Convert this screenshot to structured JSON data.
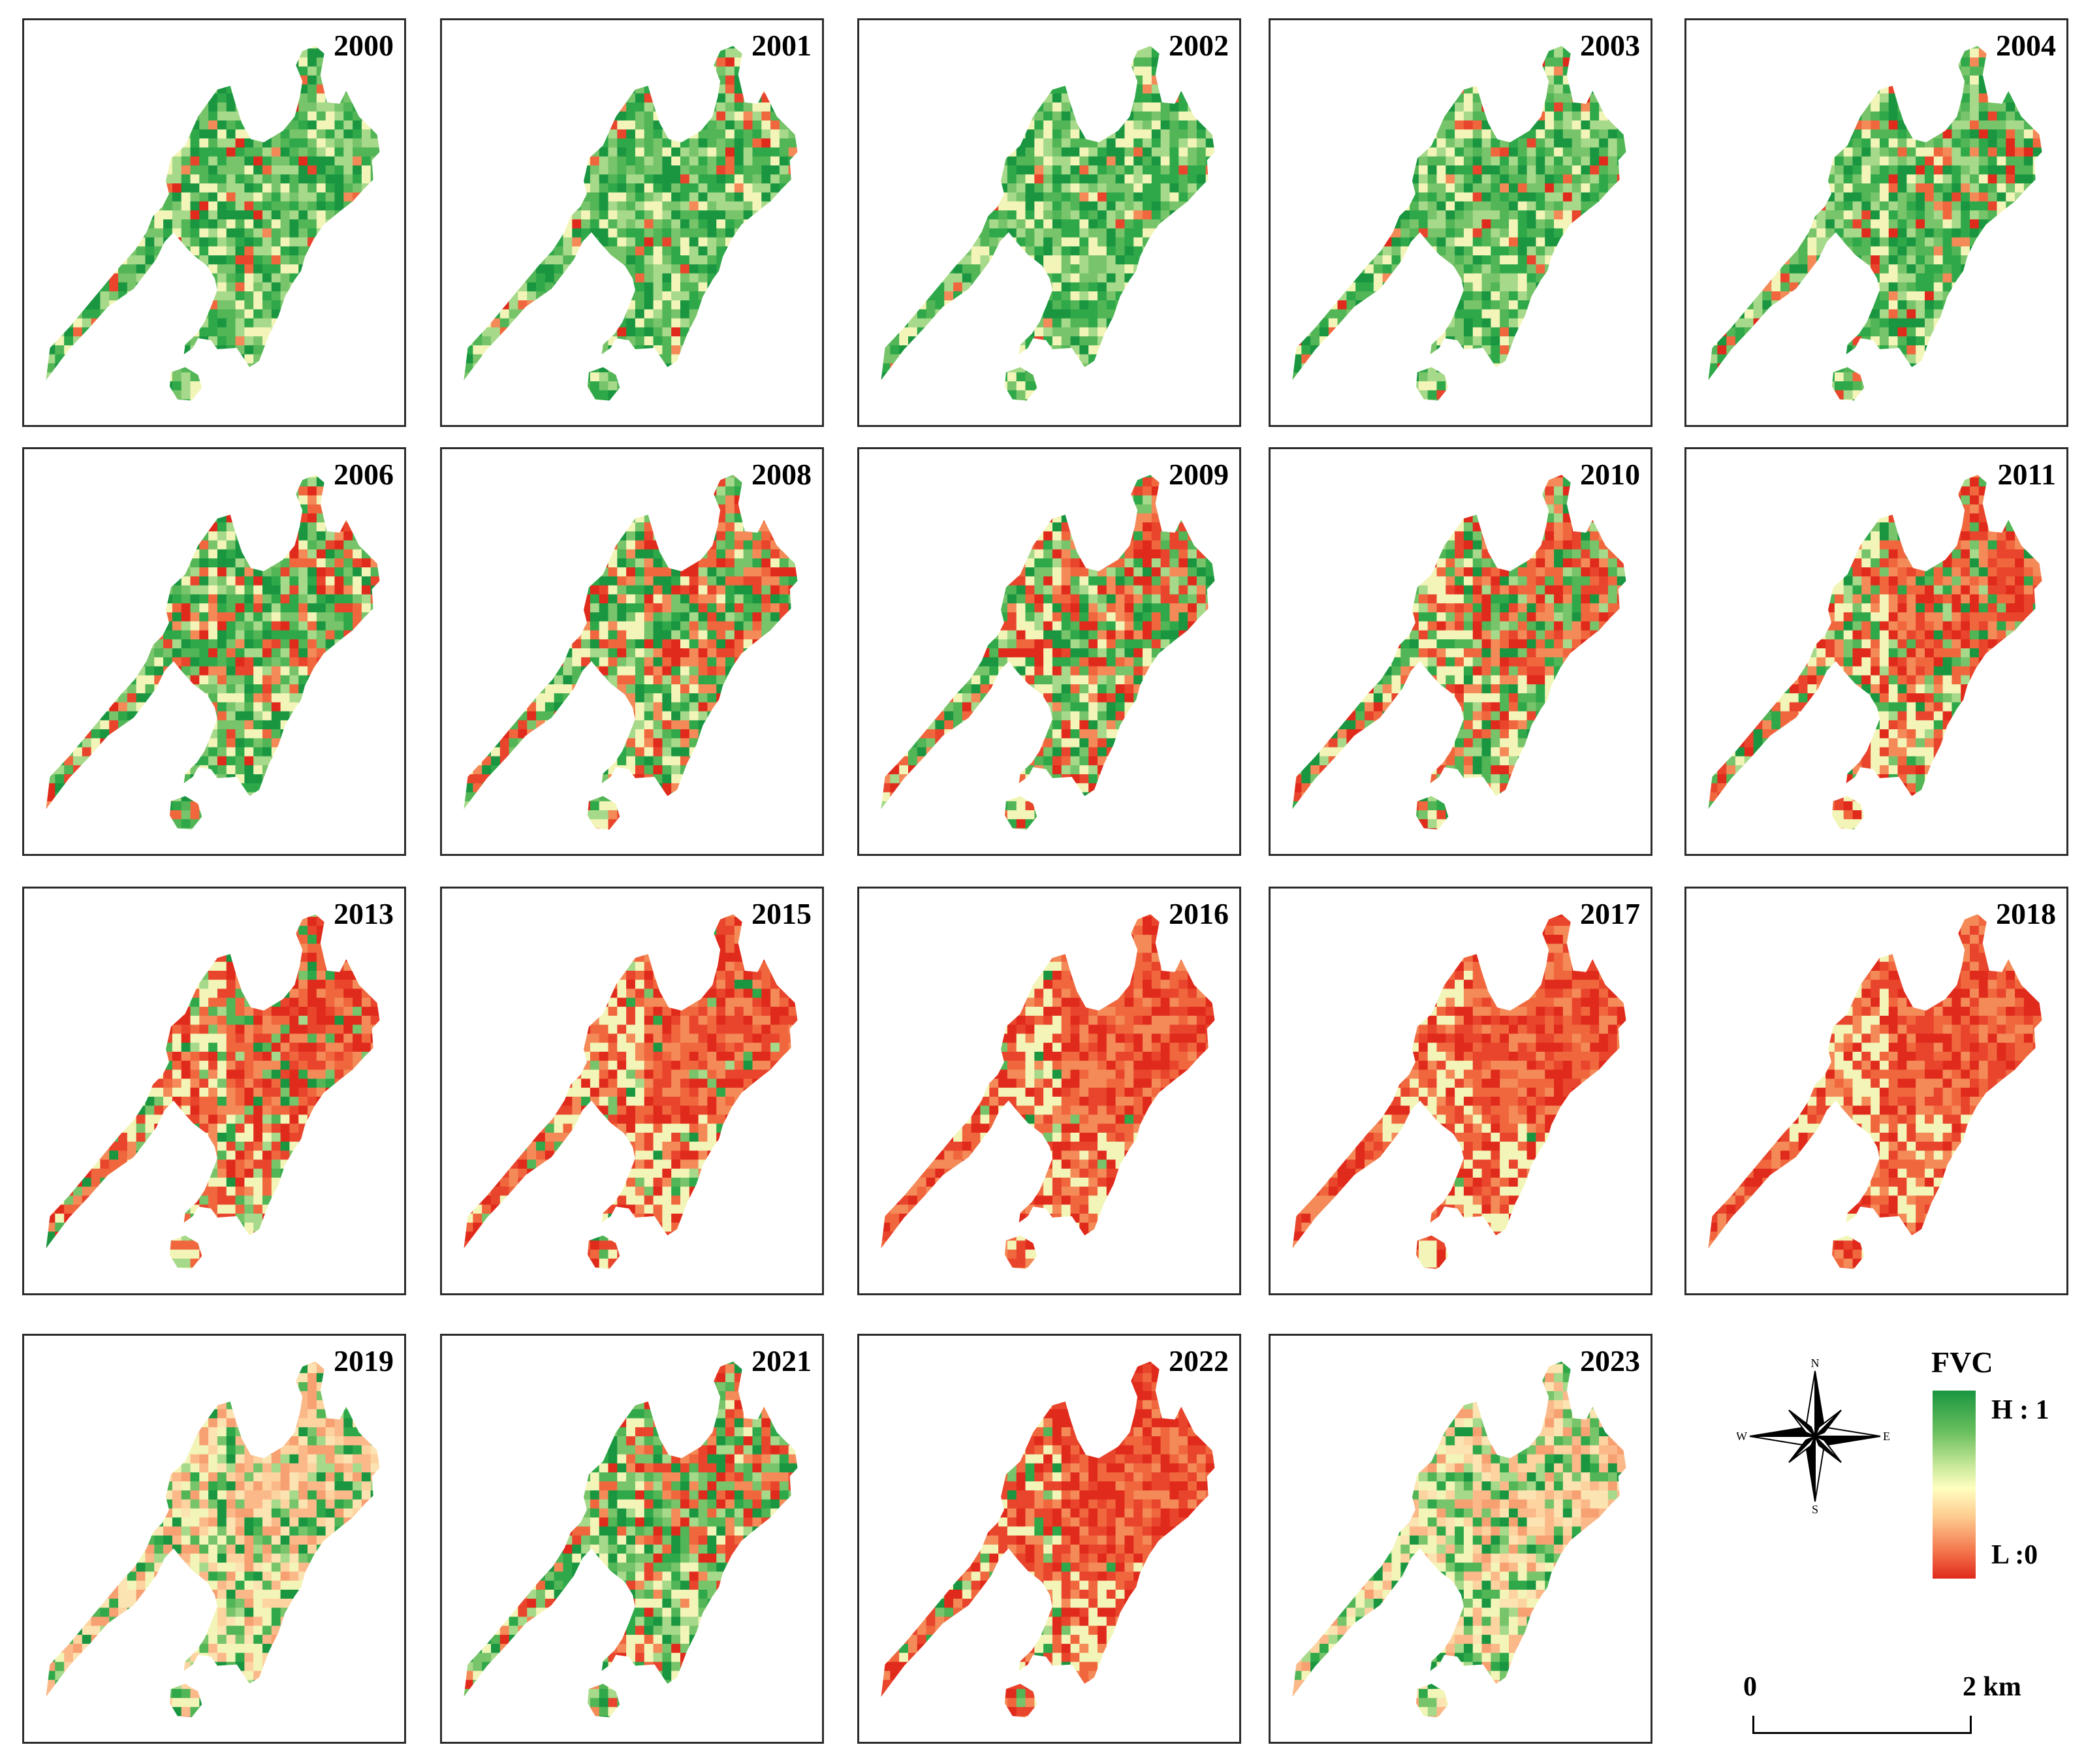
{
  "panels": [
    {
      "year": "2000",
      "redness": 0.06
    },
    {
      "year": "2001",
      "redness": 0.07
    },
    {
      "year": "2002",
      "redness": 0.04
    },
    {
      "year": "2003",
      "redness": 0.1
    },
    {
      "year": "2004",
      "redness": 0.14
    },
    {
      "year": "2006",
      "redness": 0.22
    },
    {
      "year": "2008",
      "redness": 0.34
    },
    {
      "year": "2009",
      "redness": 0.38
    },
    {
      "year": "2010",
      "redness": 0.44
    },
    {
      "year": "2011",
      "redness": 0.55
    },
    {
      "year": "2013",
      "redness": 0.6
    },
    {
      "year": "2015",
      "redness": 0.7
    },
    {
      "year": "2016",
      "redness": 0.8
    },
    {
      "year": "2017",
      "redness": 0.83
    },
    {
      "year": "2018",
      "redness": 0.84
    },
    {
      "year": "2019",
      "redness": 0.5,
      "pale": true
    },
    {
      "year": "2021",
      "redness": 0.3
    },
    {
      "year": "2022",
      "redness": 0.76
    },
    {
      "year": "2023",
      "redness": 0.45,
      "pale": true
    }
  ],
  "legend": {
    "title": "FVC",
    "high_label": "H : 1",
    "low_label": "L :0",
    "colors": [
      "#1a9641",
      "#69bf5e",
      "#c8e89a",
      "#ffffc0",
      "#fdc88c",
      "#f4734a",
      "#e02a1c"
    ]
  },
  "compass": {
    "n": "N",
    "s": "S",
    "e": "E",
    "w": "W"
  },
  "scale_bar": {
    "start_label": "0",
    "end_label": "2 km"
  }
}
